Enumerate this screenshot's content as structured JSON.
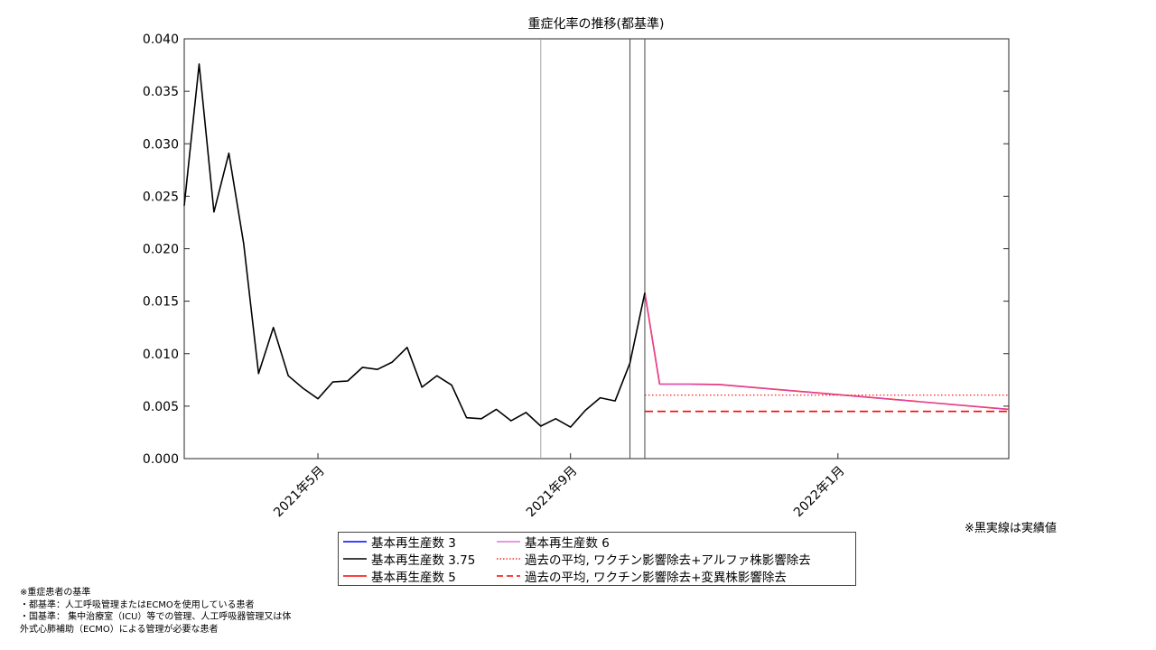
{
  "chart_data": {
    "type": "line",
    "title": "重症化率の推移(都基準)",
    "xlabel": "",
    "ylabel": "",
    "ylim": [
      0,
      0.04
    ],
    "yticks": [
      "0.000",
      "0.005",
      "0.010",
      "0.015",
      "0.020",
      "0.025",
      "0.030",
      "0.035",
      "0.040"
    ],
    "xticks": [
      "2021年5月",
      "2021年9月",
      "2022年1月"
    ],
    "grid": false,
    "x_axis_note": "weekly points; tick 2021年5月 ≈ week 9, 2021年9月 ≈ week 26, 2022年1月 ≈ week 44",
    "actual": {
      "x": [
        0,
        1,
        2,
        3,
        4,
        5,
        6,
        7,
        8,
        9,
        10,
        11,
        12,
        13,
        14,
        15,
        16,
        17,
        18,
        19,
        20,
        21,
        22,
        23,
        24,
        25,
        26,
        27,
        28,
        29,
        30,
        31
      ],
      "values": [
        0.0241,
        0.0376,
        0.0235,
        0.0291,
        0.0205,
        0.0081,
        0.0125,
        0.0079,
        0.0067,
        0.0057,
        0.0073,
        0.0074,
        0.0087,
        0.0085,
        0.0092,
        0.0106,
        0.0068,
        0.0079,
        0.007,
        0.0039,
        0.0038,
        0.0047,
        0.0036,
        0.0044,
        0.0031,
        0.0038,
        0.003,
        0.0046,
        0.0058,
        0.0055,
        0.0091,
        0.0158
      ]
    },
    "projection": {
      "x": [
        31,
        32,
        33,
        34,
        35,
        36,
        55.5
      ],
      "values": [
        0.0158,
        0.0071,
        0.0071,
        0.0071,
        0.00708,
        0.00706,
        0.0047
      ]
    },
    "hlines": [
      {
        "name": "過去の平均, ワクチン影響除去+アルファ株影響除去",
        "y": 0.00605,
        "x_from": 31,
        "style": "dotted"
      },
      {
        "name": "過去の平均, ワクチン影響除去+変異株影響除去",
        "y": 0.0045,
        "x_from": 31,
        "style": "dashed"
      }
    ],
    "vlines": [
      24,
      30,
      31
    ],
    "xlim": [
      0,
      55.5
    ],
    "legend_placement": "bottom-center",
    "legend": [
      {
        "label": "基本再生産数 3",
        "color": "#0000ff",
        "style": "solid"
      },
      {
        "label": "基本再生産数 6",
        "color": "#d45fd4",
        "style": "solid"
      },
      {
        "label": "基本再生産数 3.75",
        "color": "#000000",
        "style": "solid"
      },
      {
        "label": "過去の平均, ワクチン影響除去+アルファ株影響除去",
        "color": "#ff0000",
        "style": "dotted"
      },
      {
        "label": "基本再生産数 5",
        "color": "#ff0000",
        "style": "solid"
      },
      {
        "label": "過去の平均, ワクチン影響除去+変異株影響除去",
        "color": "#ff0000",
        "style": "dashed"
      }
    ]
  },
  "notes": {
    "right": "※黒実線は実績値",
    "footnote": [
      "※重症患者の基準",
      "・都基準：人工呼吸管理またはECMOを使用している患者",
      "・国基準： 集中治療室（ICU）等での管理、人工呼吸器管理又は体",
      "外式心肺補助（ECMO）による管理が必要な患者"
    ]
  }
}
